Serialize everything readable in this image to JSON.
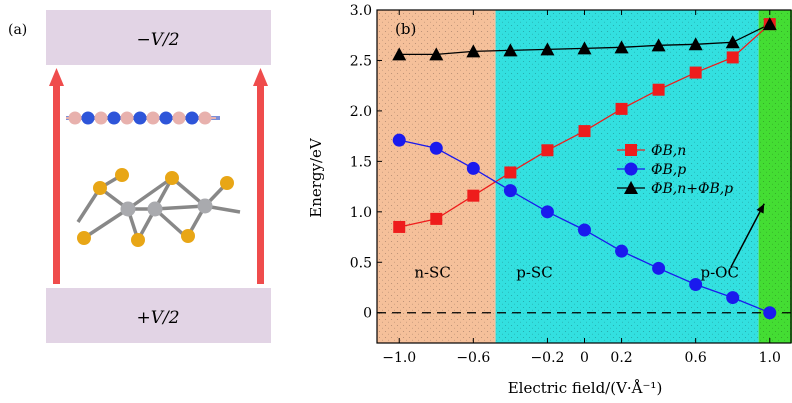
{
  "panel_a": {
    "label": "(a)",
    "top_plate": "−V/2",
    "bottom_plate": "+V/2",
    "colors": {
      "plate": "#e2d4e5",
      "arrow": "#ef4c4c",
      "boron": "#e8b1ad",
      "nitrogen": "#2e55d9",
      "sulfur": "#e8a616",
      "metal": "#a9aaae"
    }
  },
  "chart_data": {
    "type": "line",
    "panel_label": "(b)",
    "xlabel": "Electric field/(V·Å⁻¹)",
    "ylabel": "Energy/eV",
    "xlim": [
      -1.12,
      1.12
    ],
    "ylim": [
      -0.3,
      3.0
    ],
    "xticks": [
      -1.0,
      -0.6,
      -0.2,
      0,
      0.2,
      0.6,
      1.0
    ],
    "xtick_labels": [
      "−1.0",
      "−0.6",
      "−0.2",
      "0",
      "0.2",
      "0.6",
      "1.0"
    ],
    "yticks": [
      0,
      0.5,
      1.0,
      1.5,
      2.0,
      2.5,
      3.0
    ],
    "ytick_labels": [
      "0",
      "0.5",
      "1.0",
      "1.5",
      "2.0",
      "2.5",
      "3.0"
    ],
    "regions": [
      {
        "label": "n-SC",
        "x0": -1.12,
        "x1": -0.48,
        "color": "#f5c09a"
      },
      {
        "label": "p-SC",
        "x0": -0.48,
        "x1": 0.94,
        "color": "#33e0e0"
      },
      {
        "label": "p-OC",
        "x0": 0.94,
        "x1": 1.12,
        "color": "#44dd33"
      }
    ],
    "x": [
      -1.0,
      -0.8,
      -0.6,
      -0.4,
      -0.2,
      0.0,
      0.2,
      0.4,
      0.6,
      0.8,
      1.0
    ],
    "series": [
      {
        "name": "ΦB,n",
        "marker": "square",
        "color": "#ee1c1c",
        "values": [
          0.85,
          0.93,
          1.16,
          1.39,
          1.61,
          1.8,
          2.02,
          2.21,
          2.38,
          2.53,
          2.86
        ]
      },
      {
        "name": "ΦB,p",
        "marker": "circle",
        "color": "#1a1aee",
        "values": [
          1.71,
          1.63,
          1.43,
          1.21,
          1.0,
          0.82,
          0.61,
          0.44,
          0.28,
          0.15,
          0.0
        ]
      },
      {
        "name": "ΦB,n+ΦB,p",
        "marker": "triangle",
        "color": "#000000",
        "values": [
          2.56,
          2.56,
          2.59,
          2.6,
          2.61,
          2.62,
          2.63,
          2.65,
          2.66,
          2.68,
          2.86
        ]
      }
    ],
    "reference_line": {
      "y": 0,
      "style": "dashed"
    },
    "legend_position": "center-right",
    "annotation": {
      "text": "p-OC",
      "arrow_to": [
        0.97,
        1.08
      ]
    }
  }
}
